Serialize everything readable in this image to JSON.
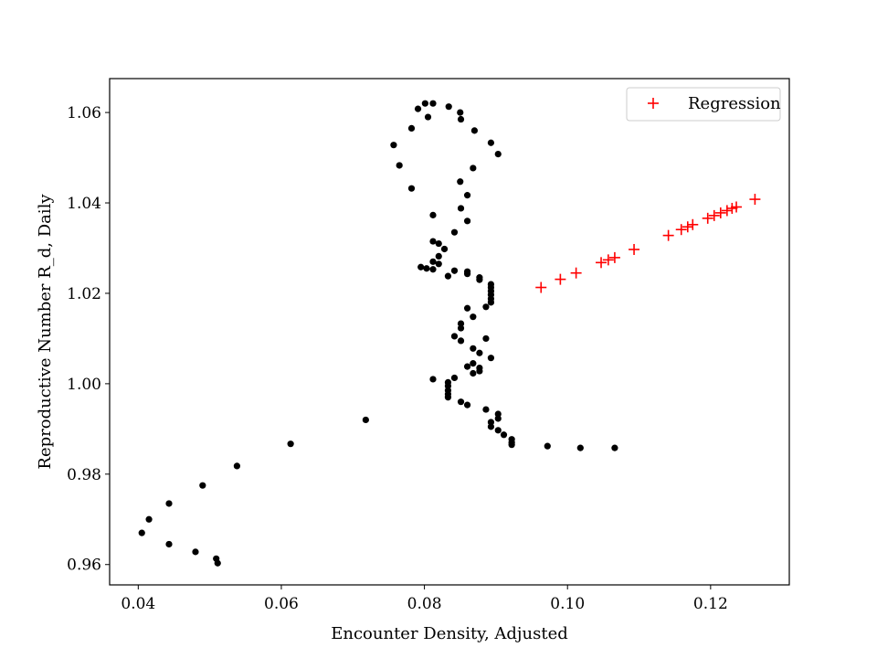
{
  "chart_data": {
    "type": "scatter",
    "title": "",
    "xlabel": "Encounter Density, Adjusted",
    "ylabel": "Reproductive Number R_d, Daily",
    "xlim": [
      0.036,
      0.131
    ],
    "ylim": [
      0.9555,
      1.0675
    ],
    "xticks": [
      {
        "value": 0.04,
        "label": "0.04"
      },
      {
        "value": 0.06,
        "label": "0.06"
      },
      {
        "value": 0.08,
        "label": "0.08"
      },
      {
        "value": 0.1,
        "label": "0.10"
      },
      {
        "value": 0.12,
        "label": "0.12"
      }
    ],
    "yticks": [
      {
        "value": 0.96,
        "label": "0.96"
      },
      {
        "value": 0.98,
        "label": "0.98"
      },
      {
        "value": 1.0,
        "label": "1.00"
      },
      {
        "value": 1.02,
        "label": "1.02"
      },
      {
        "value": 1.04,
        "label": "1.04"
      },
      {
        "value": 1.06,
        "label": "1.06"
      }
    ],
    "grid": false,
    "legend_position": "top-right",
    "series": [
      {
        "name": "",
        "marker": "dot",
        "color": "#000000",
        "in_legend": false,
        "points": [
          [
            0.0405,
            0.967
          ],
          [
            0.0415,
            0.97
          ],
          [
            0.0443,
            0.9735
          ],
          [
            0.0443,
            0.9645
          ],
          [
            0.048,
            0.9628
          ],
          [
            0.049,
            0.9775
          ],
          [
            0.0509,
            0.9613
          ],
          [
            0.0511,
            0.9603
          ],
          [
            0.0538,
            0.9818
          ],
          [
            0.0613,
            0.9867
          ],
          [
            0.0718,
            0.992
          ],
          [
            0.0757,
            1.0528
          ],
          [
            0.0765,
            1.0483
          ],
          [
            0.0782,
            1.0565
          ],
          [
            0.0782,
            1.0432
          ],
          [
            0.0791,
            1.0608
          ],
          [
            0.0801,
            1.062
          ],
          [
            0.0805,
            1.059
          ],
          [
            0.0812,
            1.062
          ],
          [
            0.0834,
            1.0613
          ],
          [
            0.085,
            1.06
          ],
          [
            0.0851,
            1.0585
          ],
          [
            0.087,
            1.056
          ],
          [
            0.0893,
            1.0533
          ],
          [
            0.0903,
            1.0508
          ],
          [
            0.0868,
            1.0477
          ],
          [
            0.085,
            1.0447
          ],
          [
            0.086,
            1.0417
          ],
          [
            0.0812,
            1.0373
          ],
          [
            0.0851,
            1.0388
          ],
          [
            0.086,
            1.036
          ],
          [
            0.0842,
            1.0335
          ],
          [
            0.0812,
            1.0315
          ],
          [
            0.082,
            1.031
          ],
          [
            0.0828,
            1.0298
          ],
          [
            0.082,
            1.0282
          ],
          [
            0.0812,
            1.027
          ],
          [
            0.082,
            1.0265
          ],
          [
            0.0795,
            1.0258
          ],
          [
            0.0803,
            1.0255
          ],
          [
            0.0812,
            1.0253
          ],
          [
            0.0842,
            1.025
          ],
          [
            0.086,
            1.0248
          ],
          [
            0.086,
            1.0243
          ],
          [
            0.0833,
            1.0238
          ],
          [
            0.0877,
            1.0235
          ],
          [
            0.0877,
            1.023
          ],
          [
            0.0893,
            1.022
          ],
          [
            0.0893,
            1.0213
          ],
          [
            0.0893,
            1.0205
          ],
          [
            0.0893,
            1.0197
          ],
          [
            0.0893,
            1.0188
          ],
          [
            0.0893,
            1.018
          ],
          [
            0.0886,
            1.017
          ],
          [
            0.086,
            1.0167
          ],
          [
            0.0868,
            1.0148
          ],
          [
            0.0851,
            1.0133
          ],
          [
            0.0851,
            1.0123
          ],
          [
            0.0842,
            1.0105
          ],
          [
            0.0851,
            1.0095
          ],
          [
            0.0886,
            1.01
          ],
          [
            0.0868,
            1.0078
          ],
          [
            0.0877,
            1.0068
          ],
          [
            0.0893,
            1.0057
          ],
          [
            0.086,
            1.0038
          ],
          [
            0.0868,
            1.0045
          ],
          [
            0.0877,
            1.0035
          ],
          [
            0.0877,
            1.0028
          ],
          [
            0.0868,
            1.0023
          ],
          [
            0.0842,
            1.0013
          ],
          [
            0.0812,
            1.001
          ],
          [
            0.0833,
            1.0003
          ],
          [
            0.0833,
            0.9995
          ],
          [
            0.0833,
            0.9985
          ],
          [
            0.0833,
            0.9977
          ],
          [
            0.0833,
            0.997
          ],
          [
            0.0851,
            0.996
          ],
          [
            0.086,
            0.9953
          ],
          [
            0.0886,
            0.9943
          ],
          [
            0.0903,
            0.9933
          ],
          [
            0.0903,
            0.9923
          ],
          [
            0.0893,
            0.9915
          ],
          [
            0.0893,
            0.9905
          ],
          [
            0.0903,
            0.9897
          ],
          [
            0.0911,
            0.9887
          ],
          [
            0.0922,
            0.9877
          ],
          [
            0.0922,
            0.987
          ],
          [
            0.0922,
            0.9865
          ],
          [
            0.0972,
            0.9862
          ],
          [
            0.1018,
            0.9858
          ],
          [
            0.1066,
            0.9858
          ]
        ]
      },
      {
        "name": "Regression",
        "marker": "plus",
        "color": "#ff0000",
        "in_legend": true,
        "points": [
          [
            0.0963,
            1.0213
          ],
          [
            0.099,
            1.0231
          ],
          [
            0.1012,
            1.0245
          ],
          [
            0.1047,
            1.0268
          ],
          [
            0.1057,
            1.0274
          ],
          [
            0.1066,
            1.0279
          ],
          [
            0.1093,
            1.0297
          ],
          [
            0.1141,
            1.0328
          ],
          [
            0.1159,
            1.0341
          ],
          [
            0.1168,
            1.0347
          ],
          [
            0.1175,
            1.0352
          ],
          [
            0.1196,
            1.0366
          ],
          [
            0.1205,
            1.0372
          ],
          [
            0.1214,
            1.0378
          ],
          [
            0.1223,
            1.0383
          ],
          [
            0.123,
            1.0388
          ],
          [
            0.1236,
            1.0391
          ],
          [
            0.1262,
            1.0408
          ]
        ]
      }
    ]
  }
}
